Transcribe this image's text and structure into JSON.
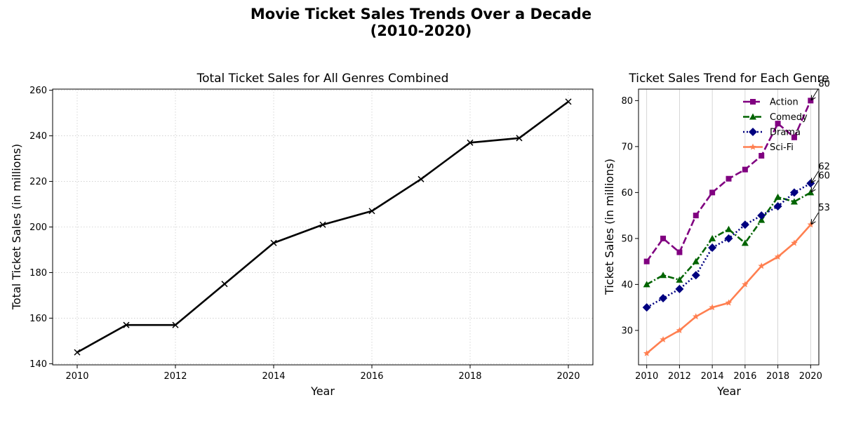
{
  "figure": {
    "title_line1": "Movie Ticket Sales Trends Over a Decade",
    "title_line2": "(2010-2020)"
  },
  "chart_data": [
    {
      "type": "line",
      "title": "Total Ticket Sales for All Genres Combined",
      "xlabel": "Year",
      "ylabel": "Total Ticket Sales (in millions)",
      "x": [
        2010,
        2011,
        2012,
        2013,
        2014,
        2015,
        2016,
        2017,
        2018,
        2019,
        2020
      ],
      "series": [
        {
          "values": [
            145,
            157,
            157,
            175,
            193,
            201,
            207,
            221,
            237,
            239,
            255
          ],
          "color": "#000000",
          "marker": "x",
          "linestyle": "solid"
        }
      ],
      "xticks": [
        2010,
        2012,
        2014,
        2016,
        2018,
        2020
      ],
      "yticks": [
        140,
        160,
        180,
        200,
        220,
        240,
        260
      ],
      "xlim": [
        2009.5,
        2020.5
      ],
      "ylim": [
        139.5,
        260.5
      ],
      "grid": "both, dotted"
    },
    {
      "type": "line",
      "title": "Ticket Sales Trend for Each Genre",
      "xlabel": "Year",
      "ylabel": "Ticket Sales (in millions)",
      "x": [
        2010,
        2011,
        2012,
        2013,
        2014,
        2015,
        2016,
        2017,
        2018,
        2019,
        2020
      ],
      "series": [
        {
          "name": "Action",
          "values": [
            45,
            50,
            47,
            55,
            60,
            63,
            65,
            68,
            75,
            72,
            80
          ],
          "color": "#800080",
          "marker": "square",
          "linestyle": "dashed"
        },
        {
          "name": "Comedy",
          "values": [
            40,
            42,
            41,
            45,
            50,
            52,
            49,
            54,
            59,
            58,
            60
          ],
          "color": "#006400",
          "marker": "triangle",
          "linestyle": "dashdot"
        },
        {
          "name": "Drama",
          "values": [
            35,
            37,
            39,
            42,
            48,
            50,
            53,
            55,
            57,
            60,
            62
          ],
          "color": "#000080",
          "marker": "diamond",
          "linestyle": "dotted"
        },
        {
          "name": "Sci-Fi",
          "values": [
            25,
            28,
            30,
            33,
            35,
            36,
            40,
            44,
            46,
            49,
            53
          ],
          "color": "#ff7f50",
          "marker": "star",
          "linestyle": "solid"
        }
      ],
      "annotations": [
        {
          "text": "80",
          "x": 2020,
          "y": 80
        },
        {
          "text": "60",
          "x": 2020,
          "y": 60
        },
        {
          "text": "62",
          "x": 2020,
          "y": 62
        },
        {
          "text": "53",
          "x": 2020,
          "y": 53
        }
      ],
      "xticks": [
        2010,
        2012,
        2014,
        2016,
        2018,
        2020
      ],
      "yticks": [
        30,
        40,
        50,
        60,
        70,
        80
      ],
      "xlim": [
        2009.5,
        2020.5
      ],
      "ylim": [
        22.5,
        82.5
      ],
      "grid": "x, solid",
      "legend": "top-right"
    }
  ]
}
